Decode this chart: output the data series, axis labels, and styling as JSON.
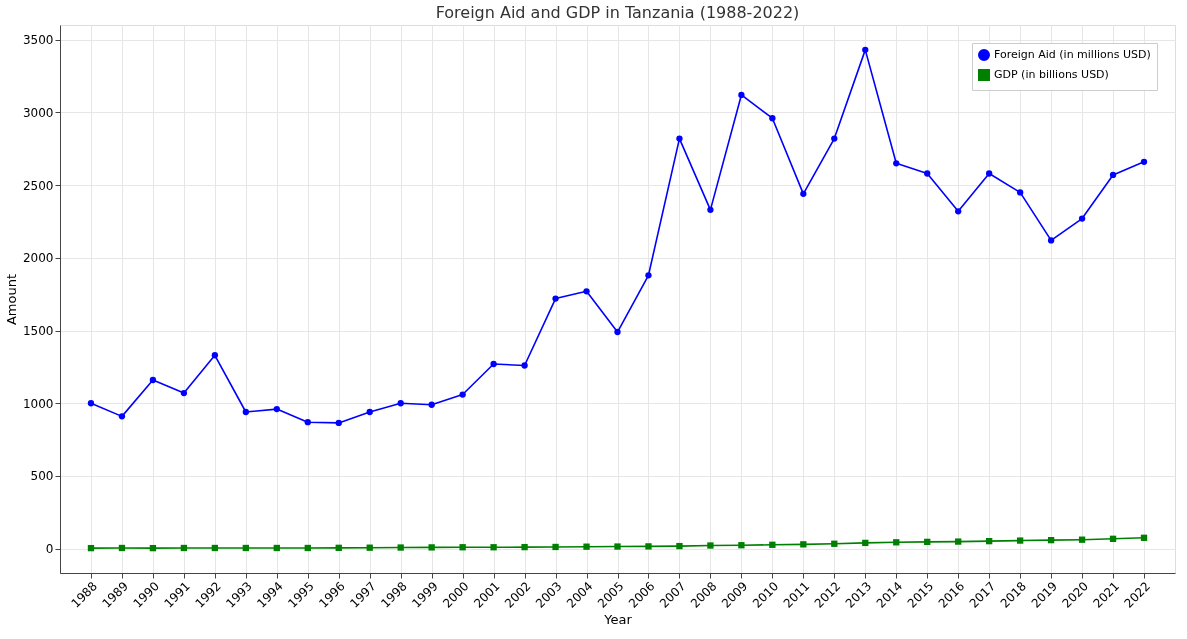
{
  "chart_data": {
    "type": "line",
    "title": "Foreign Aid and GDP in Tanzania (1988-2022)",
    "xlabel": "Year",
    "ylabel": "Amount",
    "categories": [
      "1988",
      "1989",
      "1990",
      "1991",
      "1992",
      "1993",
      "1994",
      "1995",
      "1996",
      "1997",
      "1998",
      "1999",
      "2000",
      "2001",
      "2002",
      "2003",
      "2004",
      "2005",
      "2006",
      "2007",
      "2008",
      "2009",
      "2010",
      "2011",
      "2012",
      "2013",
      "2014",
      "2015",
      "2016",
      "2017",
      "2018",
      "2019",
      "2020",
      "2021",
      "2022"
    ],
    "series": [
      {
        "name": "Foreign Aid (in millions USD)",
        "color": "#0000ff",
        "marker": "circle",
        "values": [
          1000,
          910,
          1160,
          1070,
          1330,
          940,
          960,
          870,
          865,
          940,
          1000,
          990,
          1060,
          1270,
          1260,
          1720,
          1770,
          1490,
          1880,
          2820,
          2330,
          3120,
          2960,
          2440,
          2820,
          3430,
          2650,
          2580,
          2320,
          2580,
          2450,
          2120,
          2270,
          2570,
          2660
        ]
      },
      {
        "name": "GDP (in billions USD)",
        "color": "#008000",
        "marker": "square",
        "values": [
          4,
          5,
          4,
          5,
          5,
          5,
          5,
          5,
          6,
          7,
          8,
          9,
          10,
          10,
          11,
          12,
          14,
          15,
          16,
          18,
          22,
          24,
          27,
          30,
          34,
          40,
          44,
          47,
          49,
          52,
          56,
          59,
          62,
          68,
          75
        ]
      }
    ],
    "ylim": [
      -167,
      3601
    ],
    "yticks": [
      0,
      500,
      1000,
      1500,
      2000,
      2500,
      3000,
      3500
    ],
    "grid": true,
    "legend": "top right",
    "line_style": "solid"
  }
}
